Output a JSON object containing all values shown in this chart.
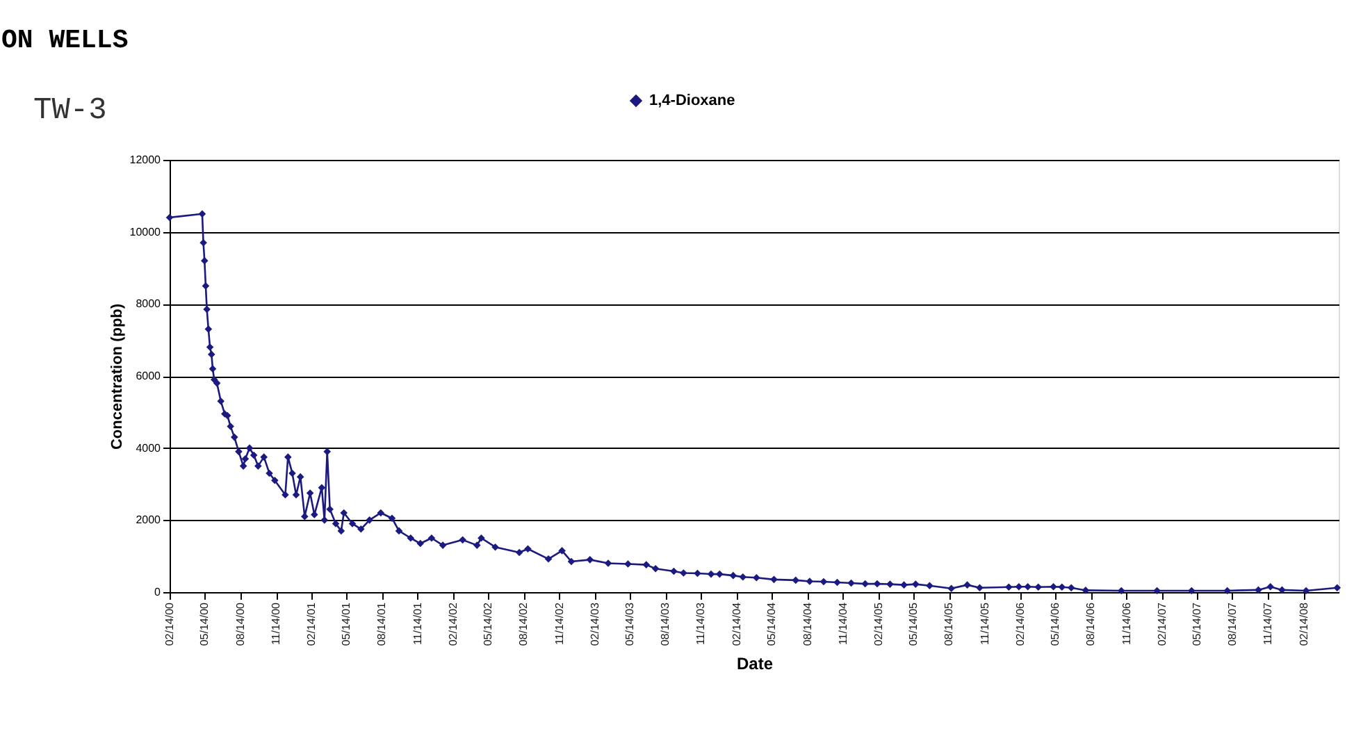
{
  "chart_data": {
    "type": "line",
    "title": "TW-3",
    "annotations": [
      "ON WELLS"
    ],
    "xlabel": "Date",
    "ylabel": "Concentration (ppb)",
    "x": [
      "2000-02-14",
      "2000-05-08",
      "2000-05-11",
      "2000-05-14",
      "2000-05-17",
      "2000-05-20",
      "2000-05-24",
      "2000-05-28",
      "2000-06-01",
      "2000-06-04",
      "2000-06-08",
      "2000-06-15",
      "2000-06-25",
      "2000-07-05",
      "2000-07-12",
      "2000-07-20",
      "2000-07-30",
      "2000-08-10",
      "2000-08-22",
      "2000-08-27",
      "2000-09-07",
      "2000-09-18",
      "2000-09-29",
      "2000-10-14",
      "2000-10-28",
      "2000-11-11",
      "2000-12-08",
      "2000-12-15",
      "2000-12-26",
      "2001-01-05",
      "2001-01-16",
      "2001-01-27",
      "2001-02-10",
      "2001-02-21",
      "2001-03-12",
      "2001-03-19",
      "2001-03-26",
      "2001-04-02",
      "2001-04-17",
      "2001-05-01",
      "2001-05-08",
      "2001-05-30",
      "2001-06-21",
      "2001-07-13",
      "2001-08-11",
      "2001-09-09",
      "2001-09-27",
      "2001-10-27",
      "2001-11-21",
      "2001-12-20",
      "2002-01-18",
      "2002-03-10",
      "2002-04-16",
      "2002-04-27",
      "2002-06-02",
      "2002-08-03",
      "2002-08-25",
      "2002-10-17",
      "2002-11-21",
      "2002-12-15",
      "2003-02-01",
      "2003-03-20",
      "2003-05-10",
      "2003-06-26",
      "2003-07-20",
      "2003-09-05",
      "2003-09-30",
      "2003-11-05",
      "2003-12-10",
      "2004-01-01",
      "2004-02-05",
      "2004-03-01",
      "2004-04-05",
      "2004-05-20",
      "2004-07-15",
      "2004-08-20",
      "2004-09-25",
      "2004-10-30",
      "2004-12-05",
      "2005-01-10",
      "2005-02-10",
      "2005-03-15",
      "2005-04-20",
      "2005-05-20",
      "2005-06-25",
      "2005-08-20",
      "2005-09-30",
      "2005-11-01",
      "2006-01-15",
      "2006-02-10",
      "2006-03-05",
      "2006-04-01",
      "2006-05-10",
      "2006-06-01",
      "2006-06-25",
      "2006-08-01",
      "2006-11-01",
      "2007-02-01",
      "2007-05-01",
      "2007-08-01",
      "2007-10-20",
      "2007-11-20",
      "2007-12-20",
      "2008-02-20",
      "2008-05-10"
    ],
    "series": [
      {
        "name": "1,4-Dioxane",
        "color": "#1a1a80",
        "values": [
          10400,
          10500,
          9700,
          9200,
          8500,
          7850,
          7300,
          6800,
          6600,
          6200,
          5900,
          5800,
          5300,
          4950,
          4900,
          4600,
          4300,
          3900,
          3500,
          3700,
          4000,
          3800,
          3500,
          3750,
          3300,
          3100,
          2700,
          3750,
          3300,
          2700,
          3200,
          2100,
          2750,
          2150,
          2900,
          2000,
          3900,
          2300,
          1900,
          1700,
          2200,
          1900,
          1750,
          2000,
          2200,
          2050,
          1700,
          1500,
          1350,
          1500,
          1300,
          1450,
          1300,
          1500,
          1250,
          1100,
          1200,
          920,
          1150,
          850,
          900,
          800,
          780,
          760,
          650,
          580,
          530,
          520,
          500,
          500,
          460,
          420,
          400,
          350,
          330,
          300,
          290,
          270,
          250,
          230,
          230,
          220,
          200,
          220,
          180,
          100,
          200,
          120,
          140,
          150,
          150,
          140,
          150,
          140,
          120,
          50,
          40,
          40,
          40,
          40,
          60,
          150,
          60,
          40,
          120
        ]
      }
    ],
    "xlim": [
      "2000-02-14",
      "2008-05-14"
    ],
    "xticks": [
      {
        "value": "2000-02-14",
        "label": "02/14/00"
      },
      {
        "value": "2000-05-14",
        "label": "05/14/00"
      },
      {
        "value": "2000-08-14",
        "label": "08/14/00"
      },
      {
        "value": "2000-11-14",
        "label": "11/14/00"
      },
      {
        "value": "2001-02-14",
        "label": "02/14/01"
      },
      {
        "value": "2001-05-14",
        "label": "05/14/01"
      },
      {
        "value": "2001-08-14",
        "label": "08/14/01"
      },
      {
        "value": "2001-11-14",
        "label": "11/14/01"
      },
      {
        "value": "2002-02-14",
        "label": "02/14/02"
      },
      {
        "value": "2002-05-14",
        "label": "05/14/02"
      },
      {
        "value": "2002-08-14",
        "label": "08/14/02"
      },
      {
        "value": "2002-11-14",
        "label": "11/14/02"
      },
      {
        "value": "2003-02-14",
        "label": "02/14/03"
      },
      {
        "value": "2003-05-14",
        "label": "05/14/03"
      },
      {
        "value": "2003-08-14",
        "label": "08/14/03"
      },
      {
        "value": "2003-11-14",
        "label": "11/14/03"
      },
      {
        "value": "2004-02-14",
        "label": "02/14/04"
      },
      {
        "value": "2004-05-14",
        "label": "05/14/04"
      },
      {
        "value": "2004-08-14",
        "label": "08/14/04"
      },
      {
        "value": "2004-11-14",
        "label": "11/14/04"
      },
      {
        "value": "2005-02-14",
        "label": "02/14/05"
      },
      {
        "value": "2005-05-14",
        "label": "05/14/05"
      },
      {
        "value": "2005-08-14",
        "label": "08/14/05"
      },
      {
        "value": "2005-11-14",
        "label": "11/14/05"
      },
      {
        "value": "2006-02-14",
        "label": "02/14/06"
      },
      {
        "value": "2006-05-14",
        "label": "05/14/06"
      },
      {
        "value": "2006-08-14",
        "label": "08/14/06"
      },
      {
        "value": "2006-11-14",
        "label": "11/14/06"
      },
      {
        "value": "2007-02-14",
        "label": "02/14/07"
      },
      {
        "value": "2007-05-14",
        "label": "05/14/07"
      },
      {
        "value": "2007-08-14",
        "label": "08/14/07"
      },
      {
        "value": "2007-11-14",
        "label": "11/14/07"
      },
      {
        "value": "2008-02-14",
        "label": "02/14/08"
      }
    ],
    "ylim": [
      0,
      12000
    ],
    "yticks": [
      0,
      2000,
      4000,
      6000,
      8000,
      10000,
      12000
    ],
    "grid": "y",
    "legend": "top",
    "marker": "diamond",
    "line_style": "solid"
  }
}
